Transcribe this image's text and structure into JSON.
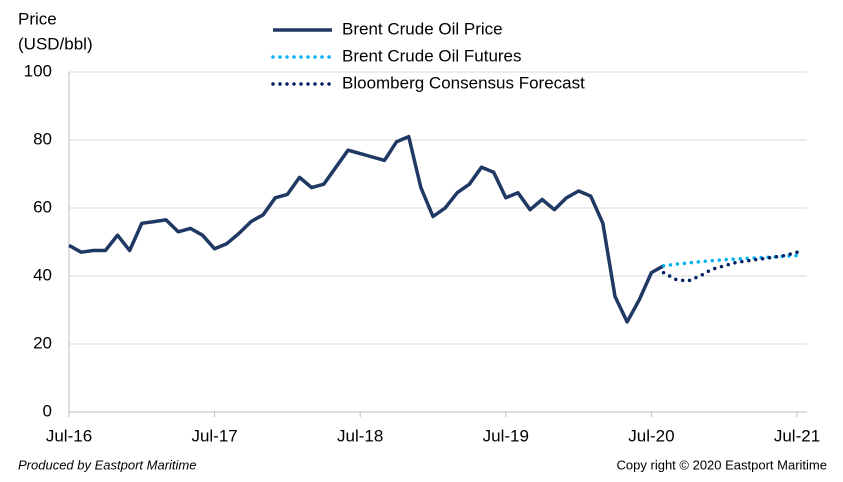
{
  "chart_data": {
    "type": "line",
    "y_label": [
      "Price",
      "(USD/bbl)"
    ],
    "categories": [
      "Jul-16",
      null,
      null,
      null,
      null,
      null,
      null,
      null,
      null,
      null,
      null,
      null,
      "Jul-17",
      null,
      null,
      null,
      null,
      null,
      null,
      null,
      null,
      null,
      null,
      null,
      "Jul-18",
      null,
      null,
      null,
      null,
      null,
      null,
      null,
      null,
      null,
      null,
      null,
      "Jul-19",
      null,
      null,
      null,
      null,
      null,
      null,
      null,
      null,
      null,
      null,
      null,
      "Jul-20",
      null,
      null,
      null,
      null,
      null,
      null,
      null,
      null,
      null,
      null,
      null,
      "Jul-21"
    ],
    "series": [
      {
        "name": "Brent Crude Oil Price",
        "color": "#1f3864",
        "style": "solid",
        "values": [
          49,
          47,
          47.5,
          47.5,
          52,
          47.5,
          55.5,
          56,
          56.5,
          53,
          54,
          52,
          48,
          49.5,
          52.5,
          56,
          58,
          63,
          64,
          69,
          66,
          67,
          72,
          77,
          76,
          75,
          74,
          79.5,
          81,
          66,
          57.5,
          60,
          64.5,
          67,
          72,
          70.5,
          63,
          64.5,
          59.5,
          62.5,
          59.5,
          63,
          65,
          63.5,
          55.5,
          34,
          26.5,
          33,
          41,
          43,
          null,
          null,
          null,
          null,
          null,
          null,
          null,
          null,
          null,
          null,
          null
        ]
      },
      {
        "name": "Brent Crude Oil Futures",
        "color": "#00b0f0",
        "style": "dotted",
        "values": [
          null,
          null,
          null,
          null,
          null,
          null,
          null,
          null,
          null,
          null,
          null,
          null,
          null,
          null,
          null,
          null,
          null,
          null,
          null,
          null,
          null,
          null,
          null,
          null,
          null,
          null,
          null,
          null,
          null,
          null,
          null,
          null,
          null,
          null,
          null,
          null,
          null,
          null,
          null,
          null,
          null,
          null,
          null,
          null,
          null,
          null,
          null,
          null,
          null,
          43,
          43.5,
          43.8,
          44.2,
          44.5,
          44.8,
          45,
          45.2,
          45.4,
          45.6,
          45.8,
          46
        ]
      },
      {
        "name": "Bloomberg Consensus Forecast",
        "color": "#002060",
        "style": "dotted",
        "values": [
          null,
          null,
          null,
          null,
          null,
          null,
          null,
          null,
          null,
          null,
          null,
          null,
          null,
          null,
          null,
          null,
          null,
          null,
          null,
          null,
          null,
          null,
          null,
          null,
          null,
          null,
          null,
          null,
          null,
          null,
          null,
          null,
          null,
          null,
          null,
          null,
          null,
          null,
          null,
          null,
          null,
          null,
          null,
          null,
          null,
          null,
          null,
          null,
          null,
          41,
          39,
          38.5,
          40,
          42,
          43,
          44,
          44.5,
          45,
          45.5,
          46,
          47
        ]
      }
    ],
    "ylim": [
      0,
      100
    ],
    "yticks": [
      0,
      20,
      40,
      60,
      80,
      100
    ],
    "grid": true,
    "legend": "top",
    "footnote_left": "Produced by Eastport Maritime",
    "footnote_right": "Copy right © 2020 Eastport Maritime"
  }
}
